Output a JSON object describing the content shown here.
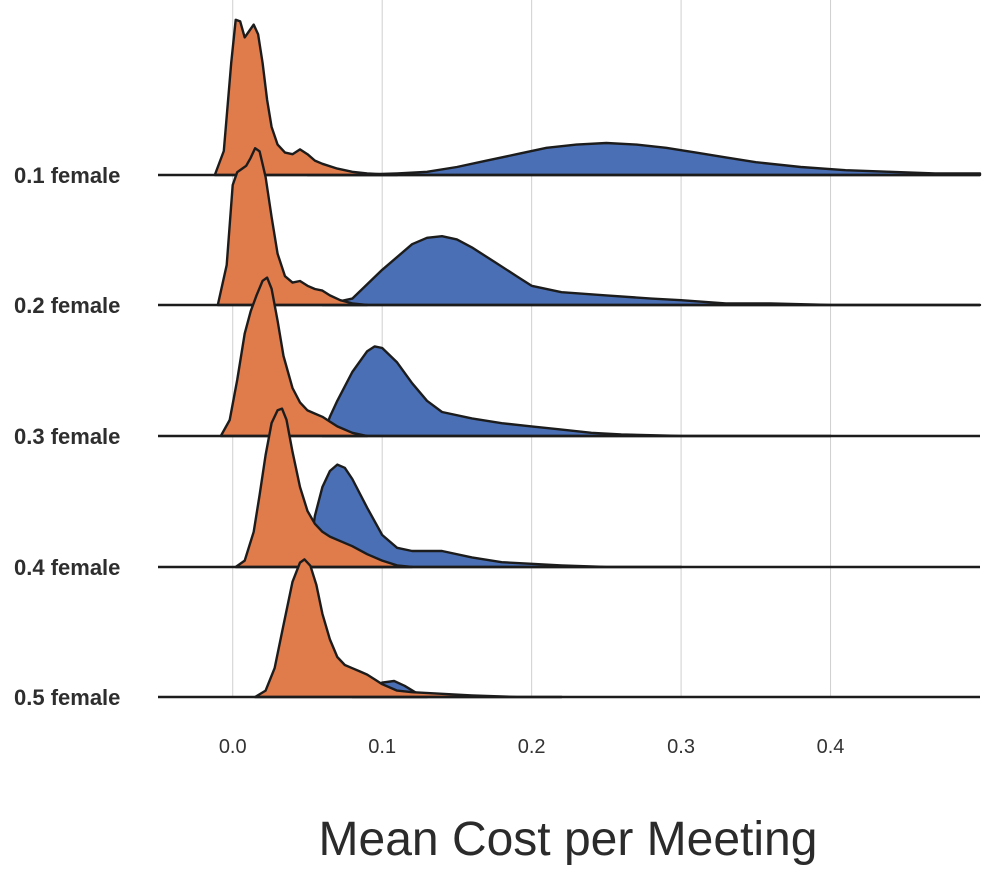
{
  "chart_data": {
    "type": "area",
    "subtype": "ridgeline-density",
    "title": "",
    "xlabel": "Mean Cost per Meeting",
    "ylabel": "",
    "xlim": [
      -0.05,
      0.5
    ],
    "x_ticks": [
      0.0,
      0.1,
      0.2,
      0.3,
      0.4
    ],
    "x_tick_labels": [
      "0.0",
      "0.1",
      "0.2",
      "0.3",
      "0.4"
    ],
    "grid": "vertical",
    "legend": "none",
    "categories": [
      "0.1 female",
      "0.2 female",
      "0.3 female",
      "0.4 female",
      "0.5 female"
    ],
    "colors": {
      "orange_series": "#E07B4C",
      "blue_series": "#4A6FB5",
      "outline": "#1C1C1C",
      "grid": "#CFCFCF"
    },
    "ridges": [
      {
        "label": "0.1 female",
        "orange": {
          "x": [
            -0.012,
            -0.006,
            -0.001,
            0.002,
            0.005,
            0.008,
            0.011,
            0.014,
            0.017,
            0.02,
            0.023,
            0.026,
            0.03,
            0.035,
            0.04,
            0.045,
            0.05,
            0.055,
            0.06,
            0.07,
            0.08,
            0.09,
            0.11
          ],
          "y": [
            0.0,
            0.15,
            0.7,
            0.97,
            0.96,
            0.86,
            0.9,
            0.94,
            0.88,
            0.7,
            0.47,
            0.3,
            0.19,
            0.14,
            0.13,
            0.16,
            0.13,
            0.09,
            0.07,
            0.04,
            0.02,
            0.01,
            0.0
          ]
        },
        "blue": {
          "x": [
            0.05,
            0.08,
            0.11,
            0.13,
            0.15,
            0.17,
            0.19,
            0.21,
            0.23,
            0.25,
            0.27,
            0.29,
            0.31,
            0.33,
            0.35,
            0.38,
            0.41,
            0.44,
            0.47,
            0.5
          ],
          "y": [
            0.0,
            0.0,
            0.01,
            0.02,
            0.05,
            0.09,
            0.13,
            0.17,
            0.19,
            0.2,
            0.19,
            0.17,
            0.14,
            0.11,
            0.08,
            0.05,
            0.03,
            0.02,
            0.01,
            0.01
          ]
        }
      },
      {
        "label": "0.2 female",
        "orange": {
          "x": [
            -0.01,
            -0.004,
            0.0,
            0.003,
            0.006,
            0.009,
            0.012,
            0.015,
            0.018,
            0.022,
            0.026,
            0.03,
            0.035,
            0.04,
            0.045,
            0.05,
            0.055,
            0.06,
            0.065,
            0.072,
            0.08,
            0.09
          ],
          "y": [
            0.0,
            0.25,
            0.75,
            0.83,
            0.85,
            0.87,
            0.92,
            0.98,
            0.96,
            0.8,
            0.55,
            0.32,
            0.18,
            0.14,
            0.15,
            0.12,
            0.1,
            0.09,
            0.06,
            0.03,
            0.01,
            0.0
          ]
        },
        "blue": {
          "x": [
            0.06,
            0.08,
            0.1,
            0.12,
            0.13,
            0.14,
            0.15,
            0.16,
            0.175,
            0.19,
            0.2,
            0.22,
            0.25,
            0.28,
            0.3,
            0.33,
            0.36,
            0.4,
            0.45,
            0.5
          ],
          "y": [
            0.0,
            0.04,
            0.22,
            0.38,
            0.42,
            0.43,
            0.41,
            0.36,
            0.27,
            0.18,
            0.12,
            0.08,
            0.06,
            0.04,
            0.03,
            0.01,
            0.01,
            0.0,
            0.0,
            0.0
          ]
        }
      },
      {
        "label": "0.3 female",
        "orange": {
          "x": [
            -0.008,
            -0.002,
            0.003,
            0.008,
            0.012,
            0.016,
            0.02,
            0.023,
            0.026,
            0.03,
            0.034,
            0.04,
            0.045,
            0.05,
            0.055,
            0.06,
            0.065,
            0.07,
            0.08,
            0.09
          ],
          "y": [
            0.0,
            0.1,
            0.35,
            0.64,
            0.78,
            0.88,
            0.97,
            0.99,
            0.92,
            0.72,
            0.5,
            0.3,
            0.21,
            0.16,
            0.14,
            0.12,
            0.09,
            0.06,
            0.02,
            0.0
          ]
        },
        "blue": {
          "x": [
            0.06,
            0.065,
            0.07,
            0.08,
            0.09,
            0.095,
            0.1,
            0.11,
            0.12,
            0.13,
            0.14,
            0.16,
            0.18,
            0.2,
            0.22,
            0.24,
            0.26,
            0.3,
            0.35,
            0.4
          ],
          "y": [
            0.0,
            0.12,
            0.22,
            0.4,
            0.53,
            0.56,
            0.55,
            0.46,
            0.33,
            0.22,
            0.15,
            0.11,
            0.08,
            0.06,
            0.04,
            0.02,
            0.01,
            0.0,
            0.0,
            0.0
          ]
        }
      },
      {
        "label": "0.4 female",
        "orange": {
          "x": [
            0.002,
            0.008,
            0.014,
            0.018,
            0.022,
            0.026,
            0.03,
            0.033,
            0.036,
            0.04,
            0.045,
            0.05,
            0.055,
            0.06,
            0.065,
            0.07,
            0.08,
            0.09,
            0.1,
            0.11,
            0.12
          ],
          "y": [
            0.0,
            0.04,
            0.22,
            0.45,
            0.7,
            0.9,
            0.98,
            0.99,
            0.92,
            0.72,
            0.5,
            0.35,
            0.27,
            0.22,
            0.19,
            0.17,
            0.13,
            0.08,
            0.04,
            0.01,
            0.0
          ]
        },
        "blue": {
          "x": [
            0.05,
            0.055,
            0.06,
            0.065,
            0.07,
            0.075,
            0.08,
            0.09,
            0.1,
            0.11,
            0.12,
            0.14,
            0.16,
            0.18,
            0.2,
            0.22,
            0.25,
            0.3
          ],
          "y": [
            0.0,
            0.32,
            0.5,
            0.6,
            0.64,
            0.62,
            0.55,
            0.37,
            0.2,
            0.12,
            0.1,
            0.1,
            0.06,
            0.03,
            0.02,
            0.01,
            0.0,
            0.0
          ]
        }
      },
      {
        "label": "0.5 female",
        "orange": {
          "x": [
            0.015,
            0.022,
            0.028,
            0.034,
            0.04,
            0.045,
            0.048,
            0.052,
            0.056,
            0.06,
            0.065,
            0.07,
            0.075,
            0.08,
            0.085,
            0.09,
            0.095,
            0.1,
            0.11,
            0.12,
            0.14,
            0.16,
            0.19,
            0.22
          ],
          "y": [
            0.0,
            0.04,
            0.18,
            0.45,
            0.72,
            0.84,
            0.86,
            0.82,
            0.7,
            0.52,
            0.36,
            0.25,
            0.2,
            0.18,
            0.16,
            0.14,
            0.11,
            0.08,
            0.04,
            0.03,
            0.02,
            0.01,
            0.0,
            0.0
          ]
        },
        "blue": {
          "x": [
            0.08,
            0.09,
            0.1,
            0.108,
            0.115,
            0.122,
            0.13
          ],
          "y": [
            0.0,
            0.04,
            0.09,
            0.1,
            0.07,
            0.03,
            0.0
          ]
        }
      }
    ]
  }
}
